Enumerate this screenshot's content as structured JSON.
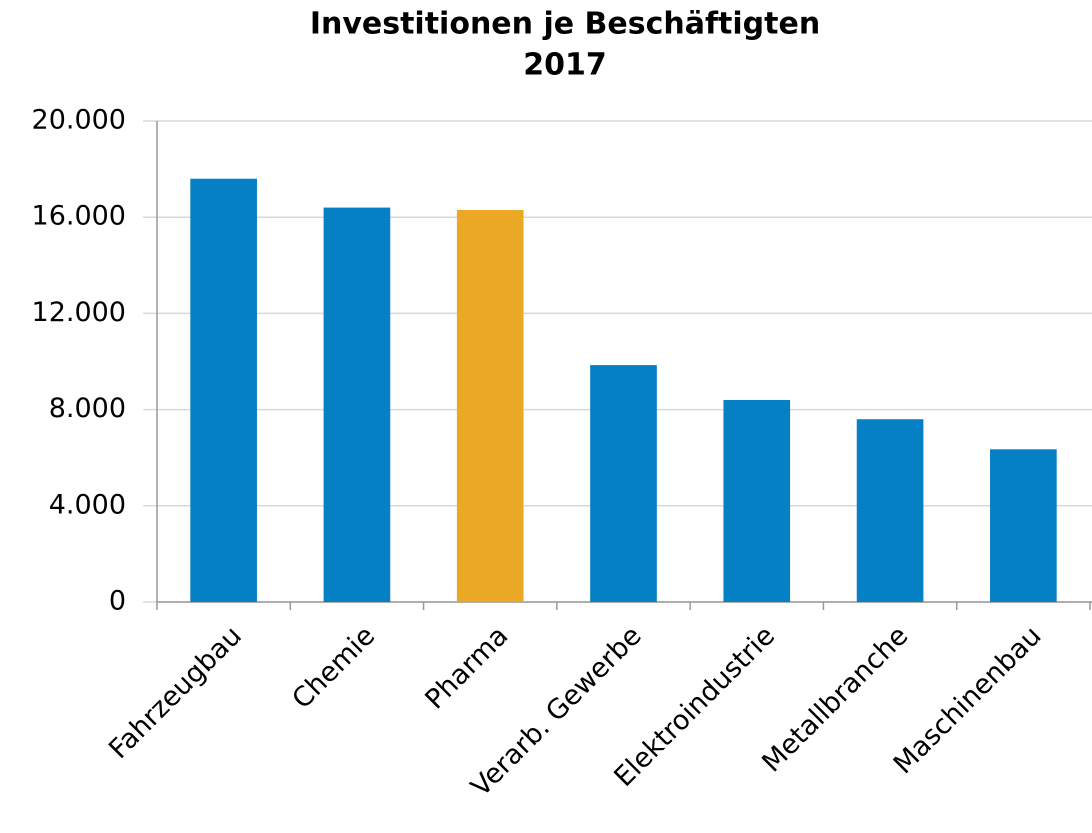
{
  "chart_data": {
    "type": "bar",
    "title": "Investitionen je Beschäftigten",
    "subtitle": "2017",
    "categories": [
      "Fahrzeugbau",
      "Chemie",
      "Pharma",
      "Verarb. Gewerbe",
      "Elektroindustrie",
      "Metallbranche",
      "Maschinenbau"
    ],
    "values": [
      17600,
      16400,
      16300,
      9850,
      8400,
      7600,
      6350
    ],
    "colors": [
      "#0680c4",
      "#0680c4",
      "#eba825",
      "#0680c4",
      "#0680c4",
      "#0680c4",
      "#0680c4"
    ],
    "ylim": [
      0,
      20000
    ],
    "yticks": [
      0,
      {
        "value": 4000,
        "label": "4.000"
      },
      {
        "value": 8000,
        "label": "8.000"
      },
      {
        "value": 12000,
        "label": "12.000"
      },
      {
        "value": 16000,
        "label": "16.000"
      },
      {
        "value": 20000,
        "label": "20.000"
      }
    ],
    "grid": true
  }
}
